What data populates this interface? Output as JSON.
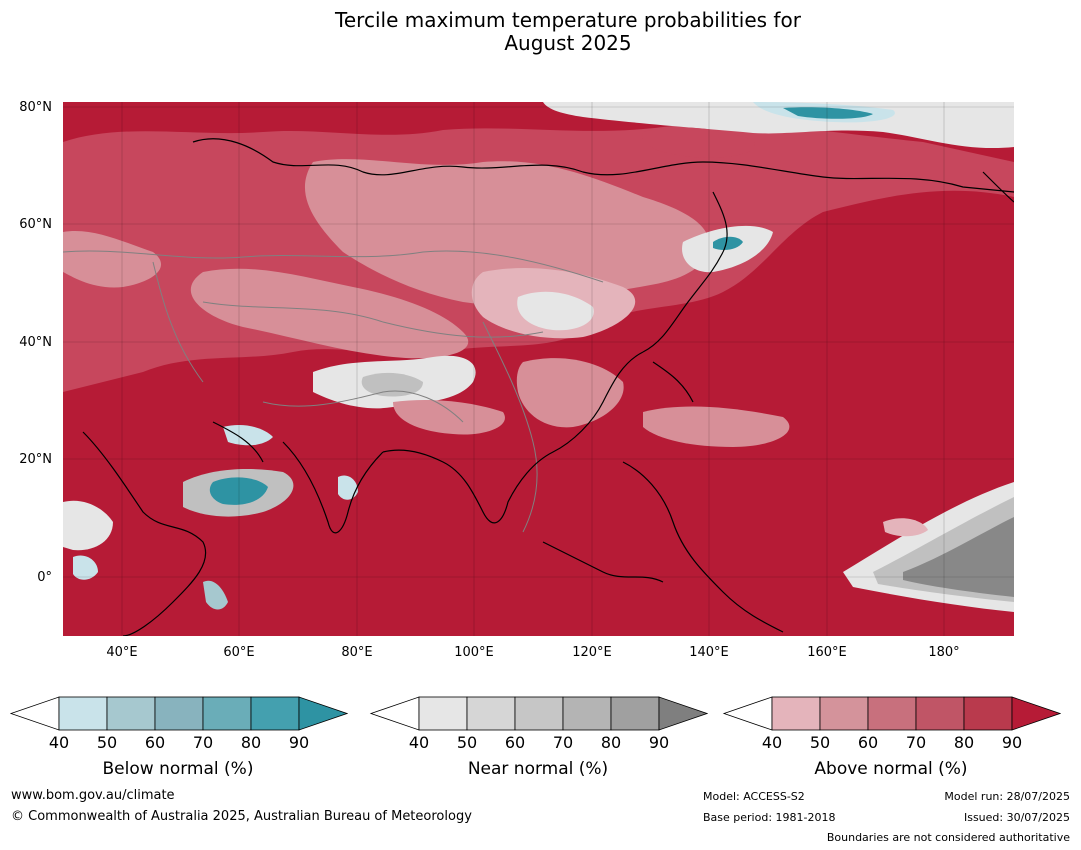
{
  "title": {
    "line1": "Tercile maximum temperature probabilities for",
    "line2": "August 2025"
  },
  "map": {
    "lat_labels": [
      "80°N",
      "60°N",
      "40°N",
      "20°N",
      "0°"
    ],
    "lon_labels": [
      "40°E",
      "60°E",
      "80°E",
      "100°E",
      "120°E",
      "140°E",
      "160°E",
      "180°"
    ],
    "colors": {
      "ocean_base": "#b61b36",
      "above_60": "#c7475d",
      "above_50": "#d78f98",
      "above_40": "#e4b4bb",
      "near_normal_light": "#e6e6e6",
      "near_normal_mid": "#c0c0c0",
      "near_normal_dark": "#888888",
      "below_normal_light": "#c9e3ea",
      "below_normal_dark": "#2e93a3",
      "coastline": "#000000",
      "borders": "#808080"
    }
  },
  "legends": [
    {
      "label": "Below normal (%)",
      "ticks": [
        "40",
        "50",
        "60",
        "70",
        "80",
        "90"
      ],
      "colors": [
        "#ffffff",
        "#c9e3ea",
        "#a6c8cf",
        "#88b3be",
        "#6aadb8",
        "#44a0af",
        "#2e93a3"
      ]
    },
    {
      "label": "Near normal (%)",
      "ticks": [
        "40",
        "50",
        "60",
        "70",
        "80",
        "90"
      ],
      "colors": [
        "#ffffff",
        "#e6e6e6",
        "#d6d6d6",
        "#c6c6c6",
        "#b4b4b4",
        "#a0a0a0",
        "#7f7f7f"
      ]
    },
    {
      "label": "Above normal (%)",
      "ticks": [
        "40",
        "50",
        "60",
        "70",
        "80",
        "90"
      ],
      "colors": [
        "#ffffff",
        "#e4b4bb",
        "#d4939b",
        "#c8707d",
        "#c05566",
        "#b93a4d",
        "#b61b36"
      ]
    }
  ],
  "footer": {
    "url": "www.bom.gov.au/climate",
    "copyright": "© Commonwealth of Australia 2025, Australian Bureau of Meteorology",
    "model": "Model: ACCESS-S2",
    "base_period": "Base period: 1981-2018",
    "model_run": "Model run: 28/07/2025",
    "issued": "Issued: 30/07/2025",
    "disclaimer": "Boundaries are not considered authoritative"
  }
}
